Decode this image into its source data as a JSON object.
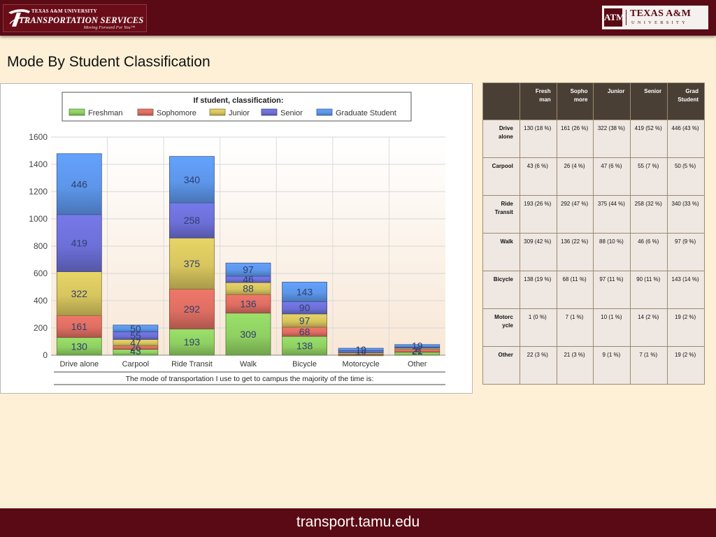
{
  "header": {
    "left_logo": {
      "university": "TEXAS A&M UNIVERSITY",
      "service": "TRANSPORTATION SERVICES",
      "tagline": "Moving Forward For You™"
    },
    "right_logo": {
      "emblem": "ATM",
      "name": "TEXAS A&M",
      "sub": "UNIVERSITY"
    }
  },
  "page_title": "Mode By Student Classification",
  "chart_data": {
    "type": "bar",
    "stacked": true,
    "legend_title": "If student, classification:",
    "legend_position": "top",
    "xlabel": "The mode of transportation I use to get to campus the majority of the time is:",
    "ylabel": "",
    "ylim": [
      0,
      1600
    ],
    "yticks": [
      0,
      200,
      400,
      600,
      800,
      1000,
      1200,
      1400,
      1600
    ],
    "grid": true,
    "categories": [
      "Drive alone",
      "Carpool",
      "Ride Transit",
      "Walk",
      "Bicycle",
      "Motorcycle",
      "Other"
    ],
    "series": [
      {
        "name": "Freshman",
        "color": "#8fd062",
        "values": [
          130,
          43,
          193,
          309,
          138,
          1,
          22
        ]
      },
      {
        "name": "Sophomore",
        "color": "#de6e62",
        "values": [
          161,
          26,
          292,
          136,
          68,
          7,
          21
        ]
      },
      {
        "name": "Junior",
        "color": "#d7c55e",
        "values": [
          322,
          47,
          375,
          88,
          97,
          10,
          9
        ]
      },
      {
        "name": "Senior",
        "color": "#6d70d8",
        "values": [
          419,
          55,
          258,
          46,
          90,
          14,
          7
        ]
      },
      {
        "name": "Graduate Student",
        "color": "#5d96ea",
        "values": [
          446,
          50,
          340,
          97,
          143,
          19,
          19
        ]
      }
    ]
  },
  "table": {
    "headers": [
      "",
      "Fresh man",
      "Sopho more",
      "Junior",
      "Senior",
      "Grad Student"
    ],
    "rows": [
      [
        "Drive alone",
        "130 (18 %)",
        "161 (26 %)",
        "322 (38 %)",
        "419 (52 %)",
        "446 (43 %)"
      ],
      [
        "Carpool",
        "43 (6 %)",
        "26 (4 %)",
        "47 (6 %)",
        "55 (7 %)",
        "50 (5 %)"
      ],
      [
        "Ride Transit",
        "193 (26 %)",
        "292 (47 %)",
        "375 (44 %)",
        "258 (32 %)",
        "340 (33 %)"
      ],
      [
        "Walk",
        "309 (42 %)",
        "136 (22 %)",
        "88 (10 %)",
        "46 (6 %)",
        "97 (9 %)"
      ],
      [
        "Bicycle",
        "138 (19 %)",
        "68 (11 %)",
        "97 (11 %)",
        "90 (11 %)",
        "143 (14 %)"
      ],
      [
        "Motorc ycle",
        "1 (0 %)",
        "7 (1 %)",
        "10 (1 %)",
        "14 (2 %)",
        "19 (2 %)"
      ],
      [
        "Other",
        "22 (3 %)",
        "21 (3 %)",
        "9 (1 %)",
        "7 (1 %)",
        "19 (2 %)"
      ]
    ]
  },
  "footer": {
    "url": "transport.tamu.edu"
  }
}
